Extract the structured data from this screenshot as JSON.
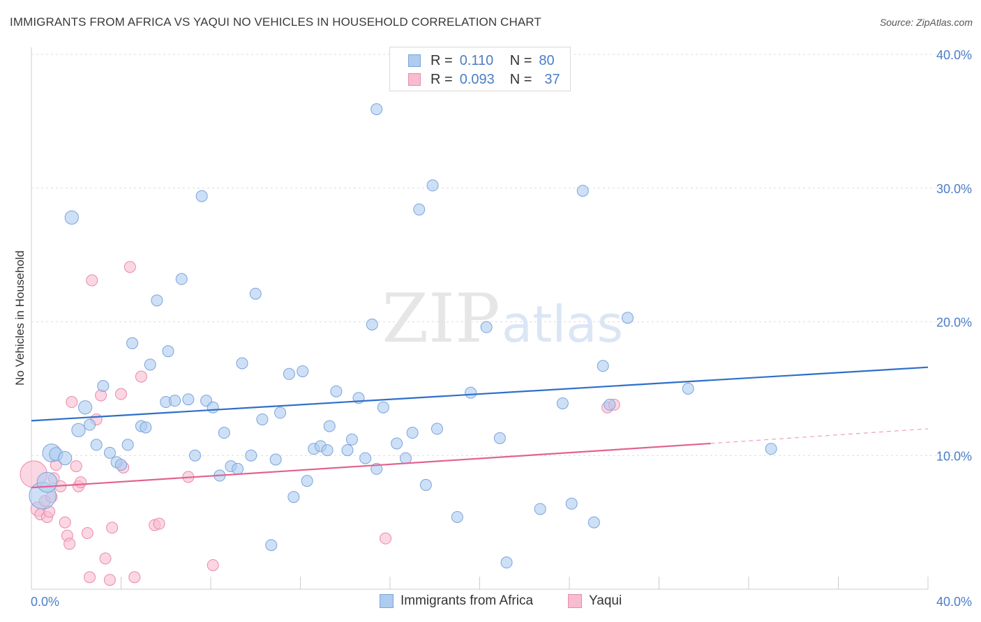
{
  "header": {
    "title": "IMMIGRANTS FROM AFRICA VS YAQUI NO VEHICLES IN HOUSEHOLD CORRELATION CHART",
    "source": "Source: ZipAtlas.com"
  },
  "watermark": {
    "zip": "ZIP",
    "atlas": "atlas"
  },
  "legend": {
    "rows": [
      {
        "r_label": "R =",
        "r_value": "0.110",
        "n_label": "N =",
        "n_value": "80"
      },
      {
        "r_label": "R =",
        "r_value": "0.093",
        "n_label": "N =",
        "n_value": "37"
      }
    ]
  },
  "bottom_legend": {
    "series1": "Immigrants from Africa",
    "series2": "Yaqui"
  },
  "colors": {
    "series1_fill": "#aecbf0",
    "series1_stroke": "#7aa4dc",
    "series1_line": "#2e6fc8",
    "series2_fill": "#f8bcd0",
    "series2_stroke": "#e98aa8",
    "series2_line": "#e2628f",
    "tick_text": "#4a7ec7",
    "grid": "#dcdcdc"
  },
  "chart_data": {
    "type": "scatter",
    "title": "IMMIGRANTS FROM AFRICA VS YAQUI NO VEHICLES IN HOUSEHOLD CORRELATION CHART",
    "xlabel": "",
    "ylabel": "No Vehicles in Household",
    "xlim": [
      0,
      40
    ],
    "ylim": [
      0,
      40
    ],
    "x_tick_labels": [
      "0.0%",
      "40.0%"
    ],
    "y_ticks": [
      10,
      20,
      30,
      40
    ],
    "y_tick_labels": [
      "10.0%",
      "20.0%",
      "30.0%",
      "40.0%"
    ],
    "grid": true,
    "legend_position": "top-center",
    "series": [
      {
        "name": "Immigrants from Africa",
        "r": 0.11,
        "n": 80,
        "trend": {
          "x": [
            0,
            40
          ],
          "y": [
            12.6,
            16.6
          ]
        },
        "points": [
          [
            0.5,
            7.0,
            2.4
          ],
          [
            0.7,
            8.0,
            1.8
          ],
          [
            0.9,
            10.2,
            1.6
          ],
          [
            1.1,
            10.1,
            1.2
          ],
          [
            1.5,
            9.8,
            1.2
          ],
          [
            1.8,
            27.8,
            1.2
          ],
          [
            2.1,
            11.9,
            1.2
          ],
          [
            2.4,
            13.6,
            1.2
          ],
          [
            2.6,
            12.3,
            1.0
          ],
          [
            2.9,
            10.8,
            1.0
          ],
          [
            3.2,
            15.2,
            1.0
          ],
          [
            3.5,
            10.2,
            1.0
          ],
          [
            3.8,
            9.5,
            1.0
          ],
          [
            4.0,
            9.3,
            1.0
          ],
          [
            4.3,
            10.8,
            1.0
          ],
          [
            4.5,
            18.4,
            1.0
          ],
          [
            4.9,
            12.2,
            1.0
          ],
          [
            5.1,
            12.1,
            1.0
          ],
          [
            5.3,
            16.8,
            1.0
          ],
          [
            5.6,
            21.6,
            1.0
          ],
          [
            6.0,
            14.0,
            1.0
          ],
          [
            6.1,
            17.8,
            1.0
          ],
          [
            6.4,
            14.1,
            1.0
          ],
          [
            6.7,
            23.2,
            1.0
          ],
          [
            7.0,
            14.2,
            1.0
          ],
          [
            7.3,
            10.0,
            1.0
          ],
          [
            7.6,
            29.4,
            1.0
          ],
          [
            7.8,
            14.1,
            1.0
          ],
          [
            8.1,
            13.6,
            1.0
          ],
          [
            8.4,
            8.5,
            1.0
          ],
          [
            8.6,
            11.7,
            1.0
          ],
          [
            8.9,
            9.2,
            1.0
          ],
          [
            9.2,
            9.0,
            1.0
          ],
          [
            9.4,
            16.9,
            1.0
          ],
          [
            9.8,
            10.0,
            1.0
          ],
          [
            10.0,
            22.1,
            1.0
          ],
          [
            10.3,
            12.7,
            1.0
          ],
          [
            10.7,
            3.3,
            1.0
          ],
          [
            10.9,
            9.7,
            1.0
          ],
          [
            11.1,
            13.2,
            1.0
          ],
          [
            11.5,
            16.1,
            1.0
          ],
          [
            11.7,
            6.9,
            1.0
          ],
          [
            12.1,
            16.3,
            1.0
          ],
          [
            12.3,
            8.1,
            1.0
          ],
          [
            12.6,
            10.5,
            1.0
          ],
          [
            12.9,
            10.7,
            1.0
          ],
          [
            13.2,
            10.4,
            1.0
          ],
          [
            13.3,
            12.2,
            1.0
          ],
          [
            13.6,
            14.8,
            1.0
          ],
          [
            14.1,
            10.4,
            1.0
          ],
          [
            14.3,
            11.2,
            1.0
          ],
          [
            14.6,
            14.3,
            1.0
          ],
          [
            14.9,
            9.8,
            1.0
          ],
          [
            15.2,
            19.8,
            1.0
          ],
          [
            15.4,
            9.0,
            1.0
          ],
          [
            15.7,
            13.6,
            1.0
          ],
          [
            15.4,
            35.9,
            1.0
          ],
          [
            16.3,
            10.9,
            1.0
          ],
          [
            16.7,
            9.8,
            1.0
          ],
          [
            17.0,
            11.7,
            1.0
          ],
          [
            17.3,
            28.4,
            1.0
          ],
          [
            17.6,
            7.8,
            1.0
          ],
          [
            17.9,
            30.2,
            1.0
          ],
          [
            18.1,
            12.0,
            1.0
          ],
          [
            19.0,
            5.4,
            1.0
          ],
          [
            19.6,
            14.7,
            1.0
          ],
          [
            20.3,
            19.6,
            1.0
          ],
          [
            20.9,
            11.3,
            1.0
          ],
          [
            21.2,
            2.0,
            1.0
          ],
          [
            22.7,
            6.0,
            1.0
          ],
          [
            23.7,
            13.9,
            1.0
          ],
          [
            24.1,
            6.4,
            1.0
          ],
          [
            24.6,
            29.8,
            1.0
          ],
          [
            25.1,
            5.0,
            1.0
          ],
          [
            25.5,
            16.7,
            1.0
          ],
          [
            25.8,
            13.8,
            1.0
          ],
          [
            26.6,
            20.3,
            1.0
          ],
          [
            29.3,
            15.0,
            1.0
          ],
          [
            33.0,
            10.5,
            1.0
          ],
          [
            14.6,
            36.0,
            0
          ]
        ]
      },
      {
        "name": "Yaqui",
        "r": 0.093,
        "n": 37,
        "trend": {
          "x": [
            0,
            30.3
          ],
          "y": [
            7.6,
            10.9
          ]
        },
        "trend_dashed": {
          "x": [
            30.3,
            40
          ],
          "y": [
            10.9,
            12.0
          ]
        },
        "points": [
          [
            0.1,
            8.6,
            2.4
          ],
          [
            0.3,
            6.0,
            1.3
          ],
          [
            0.4,
            5.6,
            1.0
          ],
          [
            0.6,
            6.6,
            1.0
          ],
          [
            0.7,
            5.4,
            1.0
          ],
          [
            0.8,
            5.8,
            1.0
          ],
          [
            0.9,
            6.9,
            1.0
          ],
          [
            1.0,
            8.3,
            1.0
          ],
          [
            1.1,
            9.3,
            1.0
          ],
          [
            1.3,
            7.7,
            1.0
          ],
          [
            1.5,
            5.0,
            1.0
          ],
          [
            1.6,
            4.0,
            1.0
          ],
          [
            1.7,
            3.4,
            1.0
          ],
          [
            1.8,
            14.0,
            1.0
          ],
          [
            2.0,
            9.2,
            1.0
          ],
          [
            2.1,
            7.7,
            1.0
          ],
          [
            2.2,
            8.0,
            1.0
          ],
          [
            2.5,
            4.2,
            1.0
          ],
          [
            2.6,
            0.9,
            1.0
          ],
          [
            2.7,
            23.1,
            1.0
          ],
          [
            2.9,
            12.7,
            1.0
          ],
          [
            3.1,
            14.5,
            1.0
          ],
          [
            3.3,
            2.3,
            1.0
          ],
          [
            3.5,
            0.7,
            1.0
          ],
          [
            3.6,
            4.6,
            1.0
          ],
          [
            4.0,
            14.6,
            1.0
          ],
          [
            4.1,
            9.1,
            1.0
          ],
          [
            4.4,
            24.1,
            1.0
          ],
          [
            4.6,
            0.9,
            1.0
          ],
          [
            4.9,
            15.9,
            1.0
          ],
          [
            5.5,
            4.8,
            1.0
          ],
          [
            5.7,
            4.9,
            1.0
          ],
          [
            7.0,
            8.4,
            1.0
          ],
          [
            8.1,
            1.8,
            1.0
          ],
          [
            15.8,
            3.8,
            1.0
          ],
          [
            25.7,
            13.6,
            1.0
          ],
          [
            26.0,
            13.8,
            1.0
          ]
        ]
      }
    ]
  }
}
